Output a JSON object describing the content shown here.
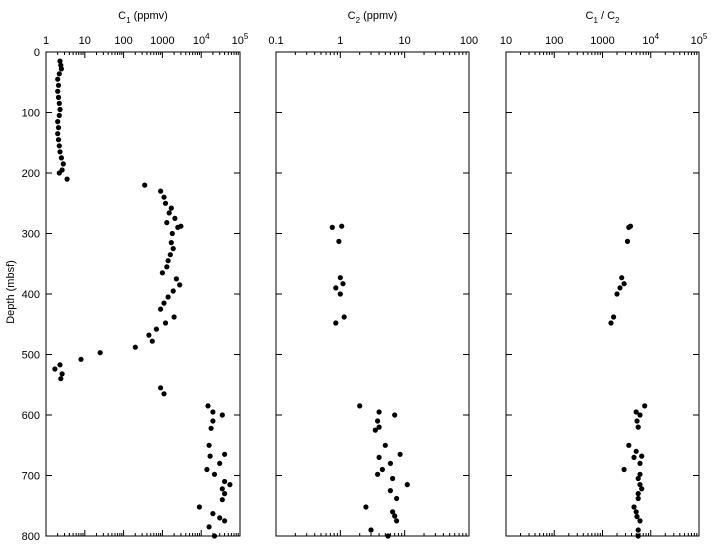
{
  "y_axis": {
    "label": "Depth (mbsf)",
    "range": [
      0,
      800
    ],
    "ticks": [
      "0",
      "100",
      "200",
      "300",
      "400",
      "500",
      "600",
      "700",
      "800"
    ]
  },
  "chart_data": [
    {
      "type": "scatter",
      "title_main": "C",
      "title_sub": "1",
      "title_suffix": " (ppmv)",
      "x_scale": "log",
      "xlim": [
        1,
        100000
      ],
      "x_ticks": [
        {
          "value": 1,
          "label": "1"
        },
        {
          "value": 10,
          "label": "10"
        },
        {
          "value": 100,
          "label": "100"
        },
        {
          "value": 1000,
          "label": "1000"
        },
        {
          "value": 10000,
          "label": "10",
          "exp": "4"
        },
        {
          "value": 100000,
          "label": "10",
          "exp": "5"
        }
      ],
      "ylim": [
        0,
        800
      ],
      "y_inverted": true,
      "points": [
        [
          2.3,
          15
        ],
        [
          2.4,
          22
        ],
        [
          2.5,
          28
        ],
        [
          2.2,
          36
        ],
        [
          2.0,
          45
        ],
        [
          2.1,
          55
        ],
        [
          2.0,
          65
        ],
        [
          2.1,
          75
        ],
        [
          2.2,
          85
        ],
        [
          2.3,
          95
        ],
        [
          2.2,
          105
        ],
        [
          2.0,
          115
        ],
        [
          2.1,
          125
        ],
        [
          2.0,
          135
        ],
        [
          2.1,
          145
        ],
        [
          2.2,
          155
        ],
        [
          2.3,
          165
        ],
        [
          2.5,
          175
        ],
        [
          2.8,
          185
        ],
        [
          2.6,
          195
        ],
        [
          2.2,
          200
        ],
        [
          3.5,
          210
        ],
        [
          350,
          220
        ],
        [
          900,
          230
        ],
        [
          1100,
          240
        ],
        [
          1200,
          250
        ],
        [
          1700,
          258
        ],
        [
          1500,
          266
        ],
        [
          2100,
          275
        ],
        [
          1300,
          282
        ],
        [
          2500,
          290
        ],
        [
          3000,
          288
        ],
        [
          1800,
          300
        ],
        [
          1700,
          315
        ],
        [
          1900,
          325
        ],
        [
          1600,
          335
        ],
        [
          1400,
          345
        ],
        [
          1300,
          355
        ],
        [
          1000,
          365
        ],
        [
          2300,
          375
        ],
        [
          2800,
          385
        ],
        [
          1900,
          395
        ],
        [
          1400,
          405
        ],
        [
          1100,
          415
        ],
        [
          900,
          425
        ],
        [
          2000,
          438
        ],
        [
          1200,
          448
        ],
        [
          700,
          458
        ],
        [
          450,
          468
        ],
        [
          550,
          478
        ],
        [
          200,
          488
        ],
        [
          25,
          497
        ],
        [
          8,
          508
        ],
        [
          2.3,
          517
        ],
        [
          1.7,
          524
        ],
        [
          2.6,
          532
        ],
        [
          2.4,
          540
        ],
        [
          900,
          555
        ],
        [
          1100,
          565
        ],
        [
          15000,
          585
        ],
        [
          20000,
          595
        ],
        [
          35000,
          600
        ],
        [
          20000,
          610
        ],
        [
          18000,
          622
        ],
        [
          16000,
          650
        ],
        [
          17000,
          668
        ],
        [
          40000,
          665
        ],
        [
          30000,
          680
        ],
        [
          14000,
          690
        ],
        [
          22000,
          698
        ],
        [
          40000,
          710
        ],
        [
          55000,
          715
        ],
        [
          35000,
          722
        ],
        [
          40000,
          730
        ],
        [
          35000,
          740
        ],
        [
          9000,
          752
        ],
        [
          20000,
          763
        ],
        [
          30000,
          770
        ],
        [
          40000,
          775
        ],
        [
          16000,
          785
        ],
        [
          22000,
          800
        ]
      ]
    },
    {
      "type": "scatter",
      "title_main": "C",
      "title_sub": "2",
      "title_suffix": " (ppmv)",
      "x_scale": "log",
      "xlim": [
        0.1,
        100
      ],
      "x_ticks": [
        {
          "value": 0.1,
          "label": "0.1"
        },
        {
          "value": 1,
          "label": "1"
        },
        {
          "value": 10,
          "label": "10"
        },
        {
          "value": 100,
          "label": "100"
        }
      ],
      "ylim": [
        0,
        800
      ],
      "y_inverted": true,
      "points": [
        [
          0.75,
          290
        ],
        [
          1.05,
          288
        ],
        [
          0.95,
          313
        ],
        [
          1.0,
          373
        ],
        [
          1.1,
          383
        ],
        [
          0.85,
          390
        ],
        [
          1.0,
          400
        ],
        [
          1.15,
          438
        ],
        [
          0.85,
          448
        ],
        [
          2.0,
          585
        ],
        [
          4.0,
          595
        ],
        [
          7.0,
          600
        ],
        [
          3.8,
          610
        ],
        [
          4.0,
          620
        ],
        [
          3.5,
          625
        ],
        [
          5.0,
          650
        ],
        [
          8.5,
          665
        ],
        [
          4.0,
          670
        ],
        [
          6.0,
          680
        ],
        [
          4.5,
          690
        ],
        [
          3.8,
          698
        ],
        [
          6.5,
          705
        ],
        [
          11.0,
          715
        ],
        [
          6.0,
          725
        ],
        [
          7.5,
          738
        ],
        [
          2.5,
          752
        ],
        [
          6.5,
          760
        ],
        [
          7.0,
          767
        ],
        [
          7.5,
          775
        ],
        [
          3.0,
          790
        ],
        [
          5.5,
          800
        ]
      ]
    },
    {
      "type": "scatter",
      "title_main": "C",
      "title_sub": "1",
      "title_suffix": " / C",
      "title_sub2": "2",
      "x_scale": "log",
      "xlim": [
        10,
        100000
      ],
      "x_ticks": [
        {
          "value": 10,
          "label": "10"
        },
        {
          "value": 100,
          "label": "100"
        },
        {
          "value": 1000,
          "label": "1000"
        },
        {
          "value": 10000,
          "label": "10",
          "exp": "4"
        },
        {
          "value": 100000,
          "label": "10",
          "exp": "5"
        }
      ],
      "ylim": [
        0,
        800
      ],
      "y_inverted": true,
      "points": [
        [
          3500,
          290
        ],
        [
          3800,
          288
        ],
        [
          3300,
          313
        ],
        [
          2500,
          373
        ],
        [
          2800,
          383
        ],
        [
          2300,
          390
        ],
        [
          2000,
          400
        ],
        [
          1700,
          438
        ],
        [
          1500,
          448
        ],
        [
          7500,
          585
        ],
        [
          5000,
          595
        ],
        [
          6000,
          600
        ],
        [
          5200,
          610
        ],
        [
          5500,
          620
        ],
        [
          3500,
          650
        ],
        [
          5000,
          660
        ],
        [
          6500,
          668
        ],
        [
          4500,
          670
        ],
        [
          6000,
          680
        ],
        [
          2800,
          690
        ],
        [
          6000,
          698
        ],
        [
          5500,
          705
        ],
        [
          6000,
          715
        ],
        [
          6500,
          722
        ],
        [
          5500,
          730
        ],
        [
          5500,
          738
        ],
        [
          4500,
          752
        ],
        [
          5000,
          760
        ],
        [
          5200,
          768
        ],
        [
          6000,
          775
        ],
        [
          5500,
          790
        ],
        [
          5500,
          800
        ]
      ]
    }
  ]
}
